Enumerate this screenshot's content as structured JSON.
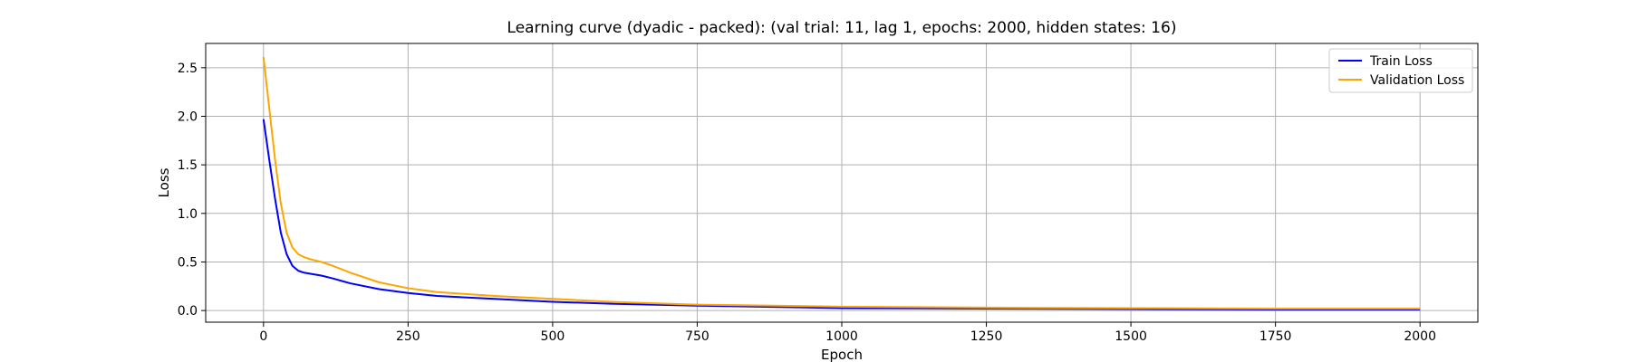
{
  "chart_data": {
    "type": "line",
    "title": "Learning curve (dyadic - packed): (val trial: 11, lag 1, epochs: 2000, hidden states: 16)",
    "xlabel": "Epoch",
    "ylabel": "Loss",
    "xlim": [
      -100,
      2100
    ],
    "ylim": [
      -0.12,
      2.75
    ],
    "xticks": [
      0,
      250,
      500,
      750,
      1000,
      1250,
      1500,
      1750,
      2000
    ],
    "yticks": [
      0.0,
      0.5,
      1.0,
      1.5,
      2.0,
      2.5
    ],
    "xtick_labels": [
      "0",
      "250",
      "500",
      "750",
      "1000",
      "1250",
      "1500",
      "1750",
      "2000"
    ],
    "ytick_labels": [
      "0.0",
      "0.5",
      "1.0",
      "1.5",
      "2.0",
      "2.5"
    ],
    "grid": true,
    "legend_position": "top-right",
    "series": [
      {
        "name": "Train Loss",
        "color": "#0000ff",
        "x": [
          0,
          10,
          20,
          30,
          40,
          50,
          60,
          70,
          80,
          100,
          120,
          150,
          200,
          250,
          300,
          400,
          500,
          600,
          750,
          1000,
          1250,
          1500,
          1750,
          2000
        ],
        "y": [
          1.97,
          1.55,
          1.15,
          0.8,
          0.58,
          0.46,
          0.41,
          0.39,
          0.38,
          0.36,
          0.33,
          0.28,
          0.22,
          0.18,
          0.15,
          0.12,
          0.09,
          0.07,
          0.05,
          0.025,
          0.02,
          0.015,
          0.01,
          0.01
        ]
      },
      {
        "name": "Validation Loss",
        "color": "#ffa500",
        "x": [
          0,
          10,
          20,
          30,
          40,
          50,
          60,
          70,
          80,
          100,
          120,
          150,
          200,
          250,
          300,
          400,
          500,
          600,
          750,
          1000,
          1250,
          1500,
          1750,
          2000
        ],
        "y": [
          2.61,
          2.08,
          1.55,
          1.1,
          0.8,
          0.65,
          0.58,
          0.55,
          0.53,
          0.5,
          0.46,
          0.39,
          0.29,
          0.23,
          0.19,
          0.15,
          0.12,
          0.09,
          0.06,
          0.04,
          0.03,
          0.025,
          0.02,
          0.02
        ]
      }
    ]
  }
}
